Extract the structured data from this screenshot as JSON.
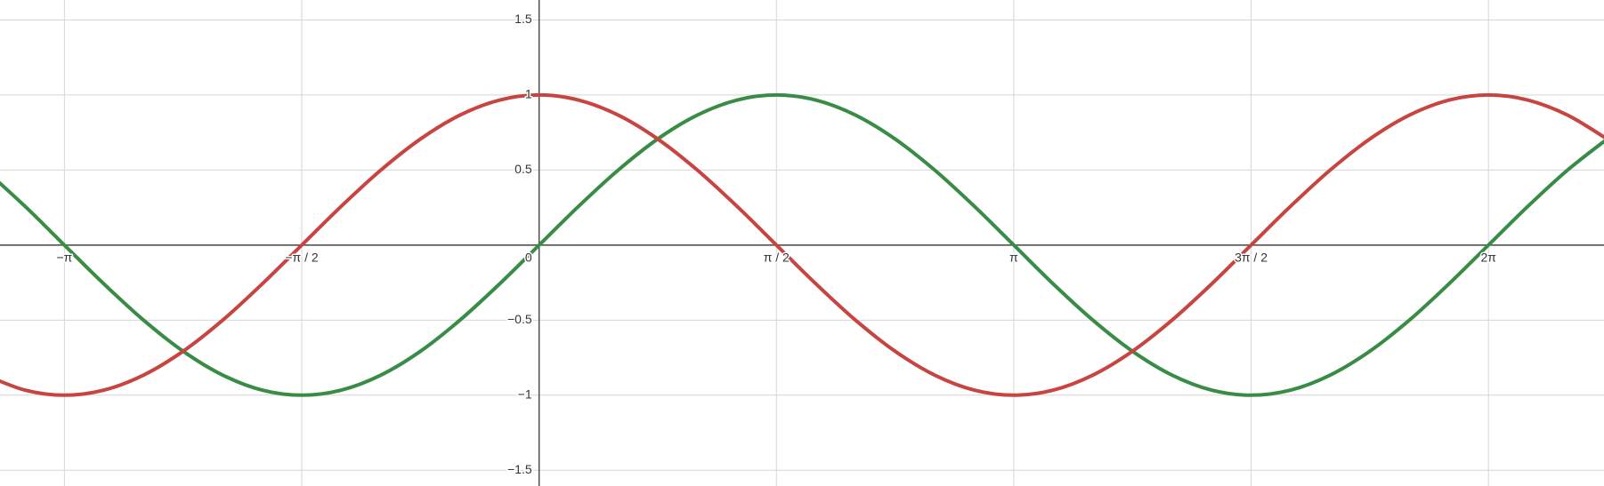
{
  "chart_data": {
    "type": "line",
    "xlim": [
      -3.568,
      7.048
    ],
    "ylim": [
      -1.605,
      1.633
    ],
    "grid": true,
    "xticks": [
      {
        "value": -3.1416,
        "label": "−π"
      },
      {
        "value": -1.5708,
        "label": "−π / 2"
      },
      0,
      {
        "value": 1.5708,
        "label": "π / 2"
      },
      {
        "value": 3.1416,
        "label": "π"
      },
      {
        "value": 4.7124,
        "label": "3π / 2"
      },
      {
        "value": 6.2832,
        "label": "2π"
      }
    ],
    "yticks": [
      {
        "value": -1.5,
        "label": "−1.5"
      },
      {
        "value": -1,
        "label": "−1"
      },
      {
        "value": -0.5,
        "label": "−0.5"
      },
      0.5,
      1,
      1.5
    ],
    "x": [
      -3.665,
      -3.403,
      -3.142,
      -2.88,
      -2.618,
      -2.356,
      -2.094,
      -1.833,
      -1.571,
      -1.309,
      -1.047,
      -0.785,
      -0.524,
      -0.262,
      0,
      0.262,
      0.524,
      0.785,
      1.047,
      1.309,
      1.571,
      1.833,
      2.094,
      2.356,
      2.618,
      2.88,
      3.142,
      3.403,
      3.665,
      3.927,
      4.189,
      4.451,
      4.712,
      4.974,
      5.236,
      5.498,
      5.76,
      6.021,
      6.283,
      6.545,
      6.807,
      7.069
    ],
    "series": [
      {
        "color": "#388c46",
        "values": [
          0.5,
          0.259,
          0,
          -0.259,
          -0.5,
          -0.707,
          -0.866,
          -0.966,
          -1,
          -0.966,
          -0.866,
          -0.707,
          -0.5,
          -0.259,
          0,
          0.259,
          0.5,
          0.707,
          0.866,
          0.966,
          1,
          0.966,
          0.866,
          0.707,
          0.5,
          0.259,
          0,
          -0.259,
          -0.5,
          -0.707,
          -0.866,
          -0.966,
          -1,
          -0.966,
          -0.866,
          -0.707,
          -0.5,
          -0.259,
          0,
          0.259,
          0.5,
          0.707
        ]
      },
      {
        "color": "#c74440",
        "values": [
          -0.866,
          -0.966,
          -1,
          -0.966,
          -0.866,
          -0.707,
          -0.5,
          -0.259,
          0,
          0.259,
          0.5,
          0.707,
          0.866,
          0.966,
          1,
          0.966,
          0.866,
          0.707,
          0.5,
          0.259,
          0,
          -0.259,
          -0.5,
          -0.707,
          -0.866,
          -0.966,
          -1,
          -0.966,
          -0.866,
          -0.707,
          -0.5,
          -0.259,
          0,
          0.259,
          0.5,
          0.707,
          0.866,
          0.966,
          1,
          0.966,
          0.866,
          0.707
        ]
      }
    ]
  }
}
